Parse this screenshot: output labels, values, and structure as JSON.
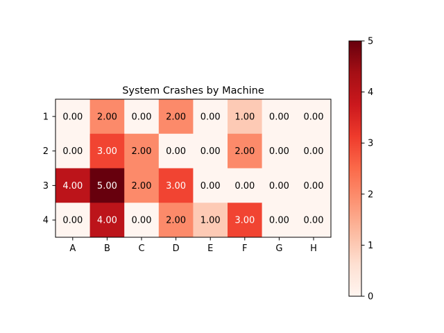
{
  "chart_data": {
    "type": "heatmap",
    "title": "System Crashes by Machine",
    "xlabel": "",
    "ylabel": "",
    "x_categories": [
      "A",
      "B",
      "C",
      "D",
      "E",
      "F",
      "G",
      "H"
    ],
    "y_categories": [
      "1",
      "2",
      "3",
      "4"
    ],
    "values": [
      [
        0,
        2,
        0,
        2,
        0,
        1,
        0,
        0
      ],
      [
        0,
        3,
        2,
        0,
        0,
        2,
        0,
        0
      ],
      [
        4,
        5,
        2,
        3,
        0,
        0,
        0,
        0
      ],
      [
        0,
        4,
        0,
        2,
        1,
        3,
        0,
        0
      ]
    ],
    "cell_labels": [
      [
        "0.00",
        "2.00",
        "0.00",
        "2.00",
        "0.00",
        "1.00",
        "0.00",
        "0.00"
      ],
      [
        "0.00",
        "3.00",
        "2.00",
        "0.00",
        "0.00",
        "2.00",
        "0.00",
        "0.00"
      ],
      [
        "4.00",
        "5.00",
        "2.00",
        "3.00",
        "0.00",
        "0.00",
        "0.00",
        "0.00"
      ],
      [
        "0.00",
        "4.00",
        "0.00",
        "2.00",
        "1.00",
        "3.00",
        "0.00",
        "0.00"
      ]
    ],
    "colormap": "Reds",
    "vmin": 0,
    "vmax": 5,
    "colorbar": {
      "ticks": [
        "0",
        "1",
        "2",
        "3",
        "4",
        "5"
      ]
    }
  }
}
